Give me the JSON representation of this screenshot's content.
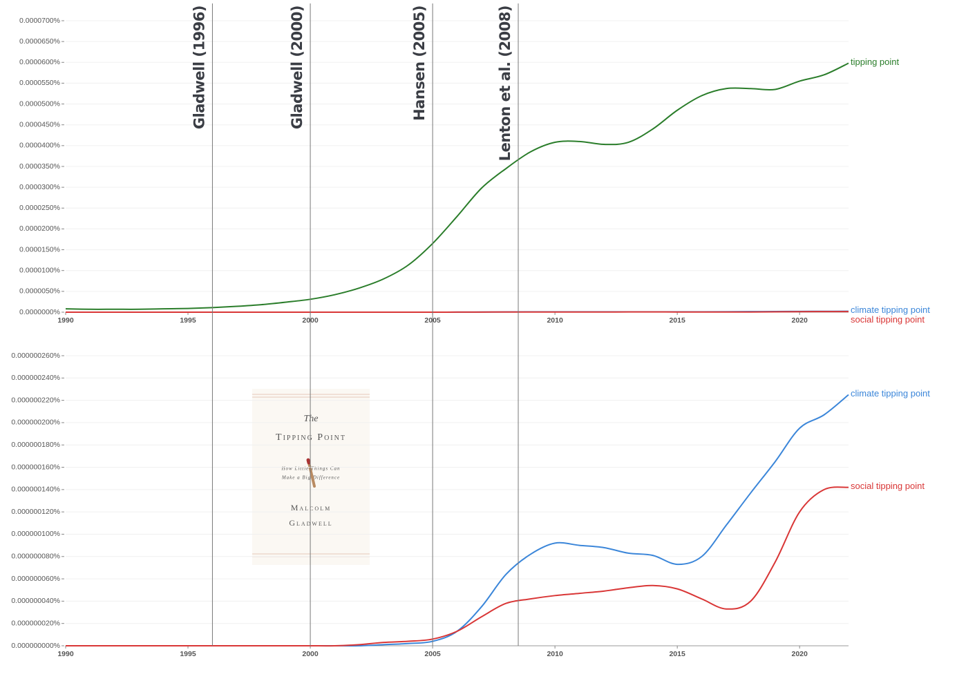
{
  "chart_data": [
    {
      "type": "line",
      "x": [
        1990,
        1991,
        1992,
        1993,
        1994,
        1995,
        1996,
        1997,
        1998,
        1999,
        2000,
        2001,
        2002,
        2003,
        2004,
        2005,
        2006,
        2007,
        2008,
        2009,
        2010,
        2011,
        2012,
        2013,
        2014,
        2015,
        2016,
        2017,
        2018,
        2019,
        2020,
        2021,
        2022
      ],
      "xlim": [
        1990,
        2022
      ],
      "xticks": [
        1990,
        1995,
        2000,
        2005,
        2010,
        2015,
        2020
      ],
      "ylim": [
        0,
        7e-05
      ],
      "yticks": [
        {
          "value": 0,
          "label": "0.0000000%"
        },
        {
          "value": 5e-06,
          "label": "0.0000050%"
        },
        {
          "value": 1e-05,
          "label": "0.0000100%"
        },
        {
          "value": 1.5e-05,
          "label": "0.0000150%"
        },
        {
          "value": 2e-05,
          "label": "0.0000200%"
        },
        {
          "value": 2.5e-05,
          "label": "0.0000250%"
        },
        {
          "value": 3e-05,
          "label": "0.0000300%"
        },
        {
          "value": 3.5e-05,
          "label": "0.0000350%"
        },
        {
          "value": 4e-05,
          "label": "0.0000400%"
        },
        {
          "value": 4.5e-05,
          "label": "0.0000450%"
        },
        {
          "value": 5e-05,
          "label": "0.0000500%"
        },
        {
          "value": 5.5e-05,
          "label": "0.0000550%"
        },
        {
          "value": 6e-05,
          "label": "0.0000600%"
        },
        {
          "value": 6.5e-05,
          "label": "0.0000650%"
        },
        {
          "value": 7e-05,
          "label": "0.0000700%"
        }
      ],
      "grid": true,
      "series": [
        {
          "name": "tipping point",
          "color": "#2a7d2a",
          "values": [
            8e-07,
            7e-07,
            7e-07,
            7e-07,
            8e-07,
            9e-07,
            1.1e-06,
            1.4e-06,
            1.8e-06,
            2.4e-06,
            3.1e-06,
            4.2e-06,
            5.8e-06,
            8e-06,
            1.13e-05,
            1.65e-05,
            2.3e-05,
            2.98e-05,
            3.45e-05,
            3.85e-05,
            4.08e-05,
            4.1e-05,
            4.03e-05,
            4.08e-05,
            4.4e-05,
            4.85e-05,
            5.2e-05,
            5.37e-05,
            5.37e-05,
            5.35e-05,
            5.55e-05,
            5.7e-05,
            5.98e-05
          ]
        },
        {
          "name": "climate tipping point",
          "color": "#3b86d9",
          "values": [
            0,
            0,
            0,
            0,
            0,
            0,
            0,
            0,
            0,
            0,
            0,
            0,
            0,
            1e-09,
            2e-09,
            4e-09,
            1.3e-08,
            3.5e-08,
            6.4e-08,
            8.2e-08,
            9.2e-08,
            9e-08,
            8.8e-08,
            8.3e-08,
            8.1e-08,
            7.3e-08,
            8e-08,
            1.08e-07,
            1.37e-07,
            1.65e-07,
            1.95e-07,
            2.07e-07,
            2.25e-07
          ]
        },
        {
          "name": "social tipping point",
          "color": "#d93636",
          "values": [
            0,
            0,
            0,
            0,
            0,
            0,
            0,
            0,
            0,
            0,
            0,
            0,
            1e-09,
            3e-09,
            4e-09,
            6e-09,
            1.3e-08,
            2.6e-08,
            3.8e-08,
            4.2e-08,
            4.5e-08,
            4.7e-08,
            4.9e-08,
            5.2e-08,
            5.4e-08,
            5.1e-08,
            4.2e-08,
            3.3e-08,
            4e-08,
            7.5e-08,
            1.2e-07,
            1.4e-07,
            1.42e-07
          ]
        }
      ],
      "annotations": [
        {
          "x": 1996,
          "label": "Gladwell (1996)"
        },
        {
          "x": 2000,
          "label": "Gladwell (2000)"
        },
        {
          "x": 2005,
          "label": "Hansen (2005)"
        },
        {
          "x": 2008.5,
          "label": "Lenton et al. (2008)"
        }
      ]
    },
    {
      "type": "line",
      "x": [
        1990,
        1991,
        1992,
        1993,
        1994,
        1995,
        1996,
        1997,
        1998,
        1999,
        2000,
        2001,
        2002,
        2003,
        2004,
        2005,
        2006,
        2007,
        2008,
        2009,
        2010,
        2011,
        2012,
        2013,
        2014,
        2015,
        2016,
        2017,
        2018,
        2019,
        2020,
        2021,
        2022
      ],
      "xlim": [
        1990,
        2022
      ],
      "xticks": [
        1990,
        1995,
        2000,
        2005,
        2010,
        2015,
        2020
      ],
      "ylim": [
        0,
        2.6e-07
      ],
      "yticks": [
        {
          "value": 0,
          "label": "0.000000000%"
        },
        {
          "value": 2e-08,
          "label": "0.000000020%"
        },
        {
          "value": 4e-08,
          "label": "0.000000040%"
        },
        {
          "value": 6e-08,
          "label": "0.000000060%"
        },
        {
          "value": 8e-08,
          "label": "0.000000080%"
        },
        {
          "value": 1e-07,
          "label": "0.000000100%"
        },
        {
          "value": 1.2e-07,
          "label": "0.000000120%"
        },
        {
          "value": 1.4e-07,
          "label": "0.000000140%"
        },
        {
          "value": 1.6e-07,
          "label": "0.000000160%"
        },
        {
          "value": 1.8e-07,
          "label": "0.000000180%"
        },
        {
          "value": 2e-07,
          "label": "0.000000200%"
        },
        {
          "value": 2.2e-07,
          "label": "0.000000220%"
        },
        {
          "value": 2.4e-07,
          "label": "0.000000240%"
        },
        {
          "value": 2.6e-07,
          "label": "0.000000260%"
        }
      ],
      "grid": true,
      "series": [
        {
          "name": "climate tipping point",
          "color": "#3b86d9",
          "values": [
            0,
            0,
            0,
            0,
            0,
            0,
            0,
            0,
            0,
            0,
            0,
            0,
            0,
            1e-09,
            2e-09,
            4e-09,
            1.3e-08,
            3.5e-08,
            6.4e-08,
            8.2e-08,
            9.2e-08,
            9e-08,
            8.8e-08,
            8.3e-08,
            8.1e-08,
            7.3e-08,
            8e-08,
            1.08e-07,
            1.37e-07,
            1.65e-07,
            1.95e-07,
            2.07e-07,
            2.25e-07
          ]
        },
        {
          "name": "social tipping point",
          "color": "#d93636",
          "values": [
            0,
            0,
            0,
            0,
            0,
            0,
            0,
            0,
            0,
            0,
            0,
            0,
            1e-09,
            3e-09,
            4e-09,
            6e-09,
            1.3e-08,
            2.6e-08,
            3.8e-08,
            4.2e-08,
            4.5e-08,
            4.7e-08,
            4.9e-08,
            5.2e-08,
            5.4e-08,
            5.1e-08,
            4.2e-08,
            3.3e-08,
            4e-08,
            7.5e-08,
            1.2e-07,
            1.4e-07,
            1.42e-07
          ]
        }
      ]
    }
  ],
  "book_cover": {
    "line1": "The",
    "line2": "Tipping Point",
    "subtitle1": "How Little Things Can",
    "subtitle2": "Make a Big Difference",
    "author1": "Malcolm",
    "author2": "Gladwell"
  }
}
